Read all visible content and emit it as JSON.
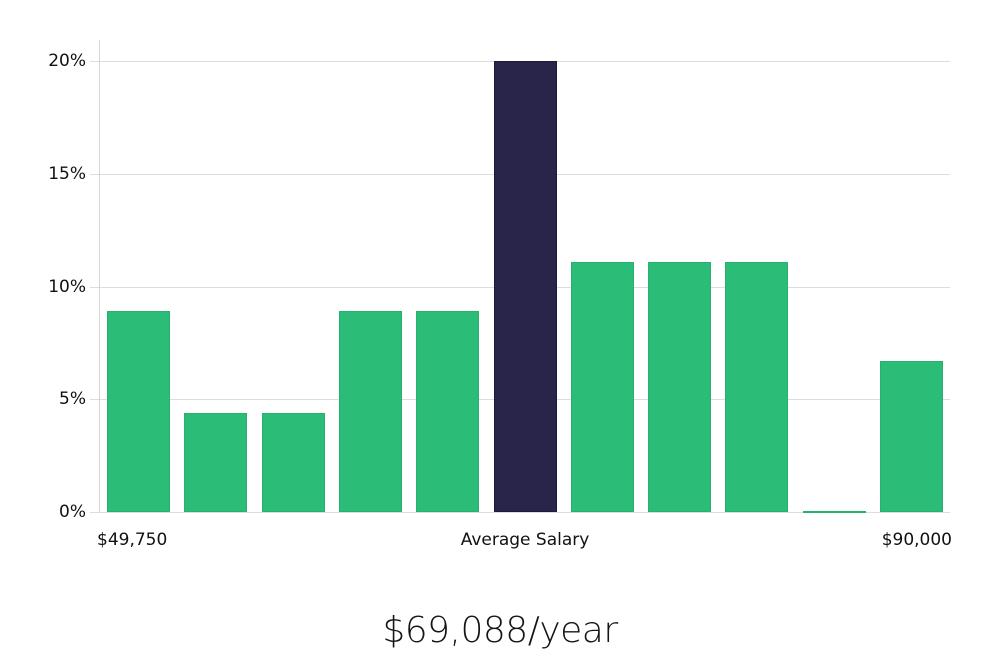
{
  "chart_data": {
    "type": "bar",
    "title": "",
    "xlabel": "Average Salary",
    "ylabel": "",
    "ylim": [
      0,
      20
    ],
    "y_ticks": [
      "0%",
      "5%",
      "10%",
      "15%",
      "20%"
    ],
    "x_tick_labels": {
      "left": "$49,750",
      "center": "Average Salary",
      "right": "$90,000"
    },
    "x_range": [
      49750,
      90000
    ],
    "grid": true,
    "legend": null,
    "categories": [
      "bin1",
      "bin2",
      "bin3",
      "bin4",
      "bin5",
      "bin6",
      "bin7",
      "bin8",
      "bin9",
      "bin10",
      "bin11"
    ],
    "values": [
      8.9,
      4.4,
      4.4,
      8.9,
      8.9,
      20.0,
      11.1,
      11.1,
      11.1,
      0.0,
      6.7
    ],
    "highlight_index": 5,
    "colors": {
      "bar": "#2bbd77",
      "highlight": "#28244a",
      "grid": "#dcdcdc"
    }
  },
  "summary": {
    "average_salary": "$69,088/year"
  }
}
